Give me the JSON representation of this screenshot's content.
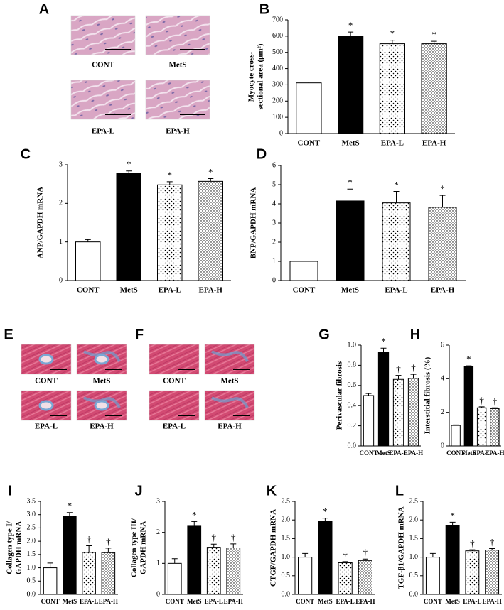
{
  "image_panels": [
    {
      "panel": "A",
      "labels": [
        "CONT",
        "MetS",
        "EPA-L",
        "EPA-H"
      ]
    },
    {
      "panel": "E",
      "labels": [
        "CONT",
        "MetS",
        "EPA-L",
        "EPA-H"
      ]
    },
    {
      "panel": "F",
      "labels": [
        "CONT",
        "MetS",
        "EPA-L",
        "EPA-H"
      ]
    }
  ],
  "chart_data": [
    {
      "type": "bar",
      "panel": "B",
      "ylabel": [
        "Myocyte cross-",
        "sectional area (μm²)"
      ],
      "categories": [
        "CONT",
        "MetS",
        "EPA-L",
        "EPA-H"
      ],
      "values": [
        312,
        600,
        553,
        553
      ],
      "errors": [
        5,
        25,
        22,
        15
      ],
      "annotations": [
        null,
        "*",
        "*",
        "*"
      ],
      "ylim": [
        0,
        700
      ],
      "yticks": [
        0,
        100,
        200,
        300,
        400,
        500,
        600,
        700
      ],
      "bar_fills": [
        "white",
        "black",
        "dots",
        "dots-dense"
      ]
    },
    {
      "type": "bar",
      "panel": "C",
      "ylabel": [
        "ANP/GAPDH mRNA"
      ],
      "categories": [
        "CONT",
        "MetS",
        "EPA-L",
        "EPA-H"
      ],
      "values": [
        1.0,
        2.78,
        2.48,
        2.57
      ],
      "errors": [
        0.06,
        0.06,
        0.08,
        0.07
      ],
      "annotations": [
        null,
        "*",
        "*",
        "*"
      ],
      "ylim": [
        0,
        3
      ],
      "yticks": [
        0,
        1,
        2,
        3
      ],
      "bar_fills": [
        "white",
        "black",
        "dots",
        "dots-dense"
      ]
    },
    {
      "type": "bar",
      "panel": "D",
      "ylabel": [
        "BNP/GAPDH mRNA"
      ],
      "categories": [
        "CONT",
        "MetS",
        "EPA-L",
        "EPA-H"
      ],
      "values": [
        1.0,
        4.15,
        4.05,
        3.82
      ],
      "errors": [
        0.28,
        0.62,
        0.6,
        0.62
      ],
      "annotations": [
        null,
        "*",
        "*",
        "*"
      ],
      "ylim": [
        0,
        6
      ],
      "yticks": [
        0,
        1,
        2,
        3,
        4,
        5,
        6
      ],
      "bar_fills": [
        "white",
        "black",
        "dots",
        "dots-dense"
      ]
    },
    {
      "type": "bar",
      "panel": "G",
      "ylabel": [
        "Perivascular fibrosis"
      ],
      "categories": [
        "CONT",
        "MetS",
        "EPA-L",
        "EPA-H"
      ],
      "values": [
        0.5,
        0.93,
        0.66,
        0.67
      ],
      "errors": [
        0.02,
        0.04,
        0.04,
        0.04
      ],
      "annotations": [
        null,
        "*",
        "†",
        "†"
      ],
      "ylim": [
        0,
        1
      ],
      "yticks": [
        {
          "value": 0,
          "label": "0.0"
        },
        {
          "value": 0.2,
          "label": "0.2"
        },
        {
          "value": 0.4,
          "label": "0.4"
        },
        {
          "value": 0.6,
          "label": "0.6"
        },
        {
          "value": 0.8,
          "label": "0.8"
        },
        {
          "value": 1,
          "label": "1.0"
        }
      ],
      "bar_fills": [
        "white",
        "black",
        "dots",
        "dots-dense"
      ]
    },
    {
      "type": "bar",
      "panel": "H",
      "ylabel": [
        "Interstitial fibrosis (%)"
      ],
      "categories": [
        "CONT",
        "MetS",
        "EPA-L",
        "EPA-H"
      ],
      "values": [
        1.22,
        4.72,
        2.27,
        2.22
      ],
      "errors": [
        0.03,
        0.05,
        0.06,
        0.05
      ],
      "annotations": [
        null,
        "*",
        "†",
        "†"
      ],
      "ylim": [
        0,
        6
      ],
      "yticks": [
        0,
        2,
        4,
        6
      ],
      "bar_fills": [
        "white",
        "black",
        "dots",
        "dots-dense"
      ]
    },
    {
      "type": "bar",
      "panel": "I",
      "ylabel": [
        "Collagen type I/",
        "GAPDH mRNA"
      ],
      "categories": [
        "CONT",
        "MetS",
        "EPA-L",
        "EPA-H"
      ],
      "values": [
        1.0,
        2.93,
        1.58,
        1.57
      ],
      "errors": [
        0.18,
        0.15,
        0.25,
        0.17
      ],
      "annotations": [
        null,
        "*",
        "†",
        "†"
      ],
      "ylim": [
        0,
        3.5
      ],
      "yticks": [
        {
          "value": 0,
          "label": "0.0"
        },
        {
          "value": 0.5,
          "label": "0.5"
        },
        {
          "value": 1,
          "label": "1.0"
        },
        {
          "value": 1.5,
          "label": "1.5"
        },
        {
          "value": 2,
          "label": "2.0"
        },
        {
          "value": 2.5,
          "label": "2.5"
        },
        {
          "value": 3,
          "label": "3.0"
        },
        {
          "value": 3.5,
          "label": "3.5"
        }
      ],
      "bar_fills": [
        "white",
        "black",
        "dots",
        "dots-dense"
      ]
    },
    {
      "type": "bar",
      "panel": "J",
      "ylabel": [
        "Collagen type III/",
        "GAPDH mRNA"
      ],
      "categories": [
        "CONT",
        "MetS",
        "EPA-L",
        "EPA-H"
      ],
      "values": [
        1.0,
        2.2,
        1.52,
        1.5
      ],
      "errors": [
        0.15,
        0.15,
        0.1,
        0.13
      ],
      "annotations": [
        null,
        "*",
        "†",
        "†"
      ],
      "ylim": [
        0,
        3
      ],
      "yticks": [
        0,
        1,
        2,
        3
      ],
      "bar_fills": [
        "white",
        "black",
        "dots",
        "dots-dense"
      ]
    },
    {
      "type": "bar",
      "panel": "K",
      "ylabel": [
        "CTGF/GAPDH mRNA"
      ],
      "categories": [
        "CONT",
        "MetS",
        "EPA-L",
        "EPA-H"
      ],
      "values": [
        1.0,
        1.97,
        0.85,
        0.91
      ],
      "errors": [
        0.1,
        0.08,
        0.03,
        0.04
      ],
      "annotations": [
        null,
        "*",
        "†",
        "†"
      ],
      "ylim": [
        0,
        2.5
      ],
      "yticks": [
        {
          "value": 0,
          "label": "0.0"
        },
        {
          "value": 0.5,
          "label": "0.5"
        },
        {
          "value": 1,
          "label": "1.0"
        },
        {
          "value": 1.5,
          "label": "1.5"
        },
        {
          "value": 2,
          "label": "2.0"
        },
        {
          "value": 2.5,
          "label": "2.5"
        }
      ],
      "bar_fills": [
        "white",
        "black",
        "dots",
        "dots-dense"
      ]
    },
    {
      "type": "bar",
      "panel": "L",
      "ylabel": [
        "TGF-β1/GAPDH mRNA"
      ],
      "categories": [
        "CONT",
        "MetS",
        "EPA-L",
        "EPA-H"
      ],
      "values": [
        1.0,
        1.86,
        1.17,
        1.19
      ],
      "errors": [
        0.1,
        0.08,
        0.03,
        0.04
      ],
      "annotations": [
        null,
        "*",
        "†",
        "†"
      ],
      "ylim": [
        0,
        2.5
      ],
      "yticks": [
        {
          "value": 0,
          "label": "0.0"
        },
        {
          "value": 0.5,
          "label": "0.5"
        },
        {
          "value": 1,
          "label": "1.0"
        },
        {
          "value": 1.5,
          "label": "1.5"
        },
        {
          "value": 2,
          "label": "2.0"
        },
        {
          "value": 2.5,
          "label": "2.5"
        }
      ],
      "bar_fills": [
        "white",
        "black",
        "dots",
        "dots-dense"
      ]
    }
  ]
}
